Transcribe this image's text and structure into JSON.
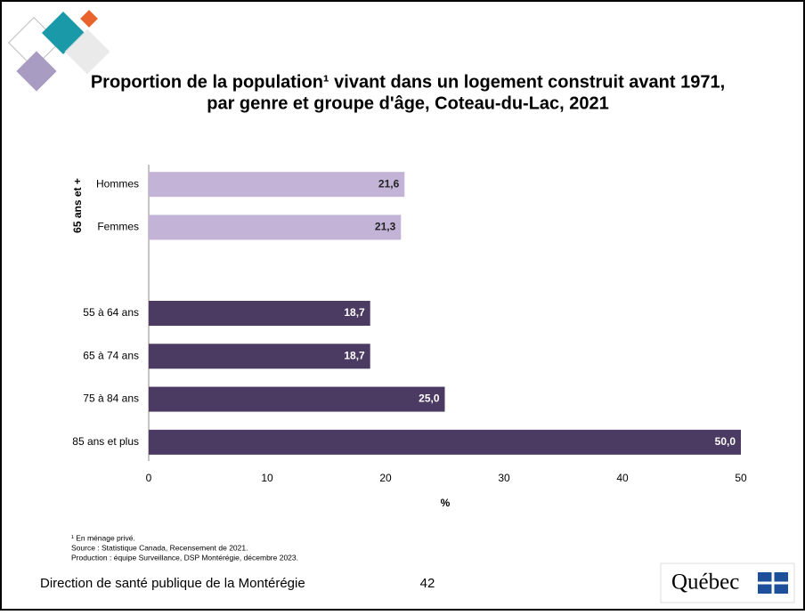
{
  "chart_data": {
    "type": "bar",
    "orientation": "horizontal",
    "title_lines": [
      "Proportion de la population¹ vivant dans un logement construit avant 1971,",
      "par genre et groupe d'âge, Coteau-du-Lac, 2021"
    ],
    "group_label": "65 ans et +",
    "categories": [
      "Hommes",
      "Femmes",
      null,
      "55 à 64 ans",
      "65 à 74 ans",
      "75 à 84 ans",
      "85 ans et plus"
    ],
    "values": [
      21.6,
      21.3,
      null,
      18.7,
      18.7,
      25.0,
      50.0
    ],
    "value_labels": [
      "21,6",
      "21,3",
      null,
      "18,7",
      "18,7",
      "25,0",
      "50,0"
    ],
    "colors": [
      "#c3b4d7",
      "#c3b4d7",
      null,
      "#4b3b62",
      "#4b3b62",
      "#4b3b62",
      "#4b3b62"
    ],
    "xlim": [
      0,
      50
    ],
    "xticks": [
      0,
      10,
      20,
      30,
      40,
      50
    ],
    "xlabel": "%",
    "grid": false,
    "footnotes": [
      "¹ En ménage privé.",
      "Source : Statistique Canada, Recensement de 2021.",
      "Production : équipe Surveillance, DSP Montérégie, décembre 2023."
    ]
  },
  "footer": {
    "organization": "Direction de santé publique de la Montérégie",
    "page": "42",
    "logo": "Québec"
  }
}
